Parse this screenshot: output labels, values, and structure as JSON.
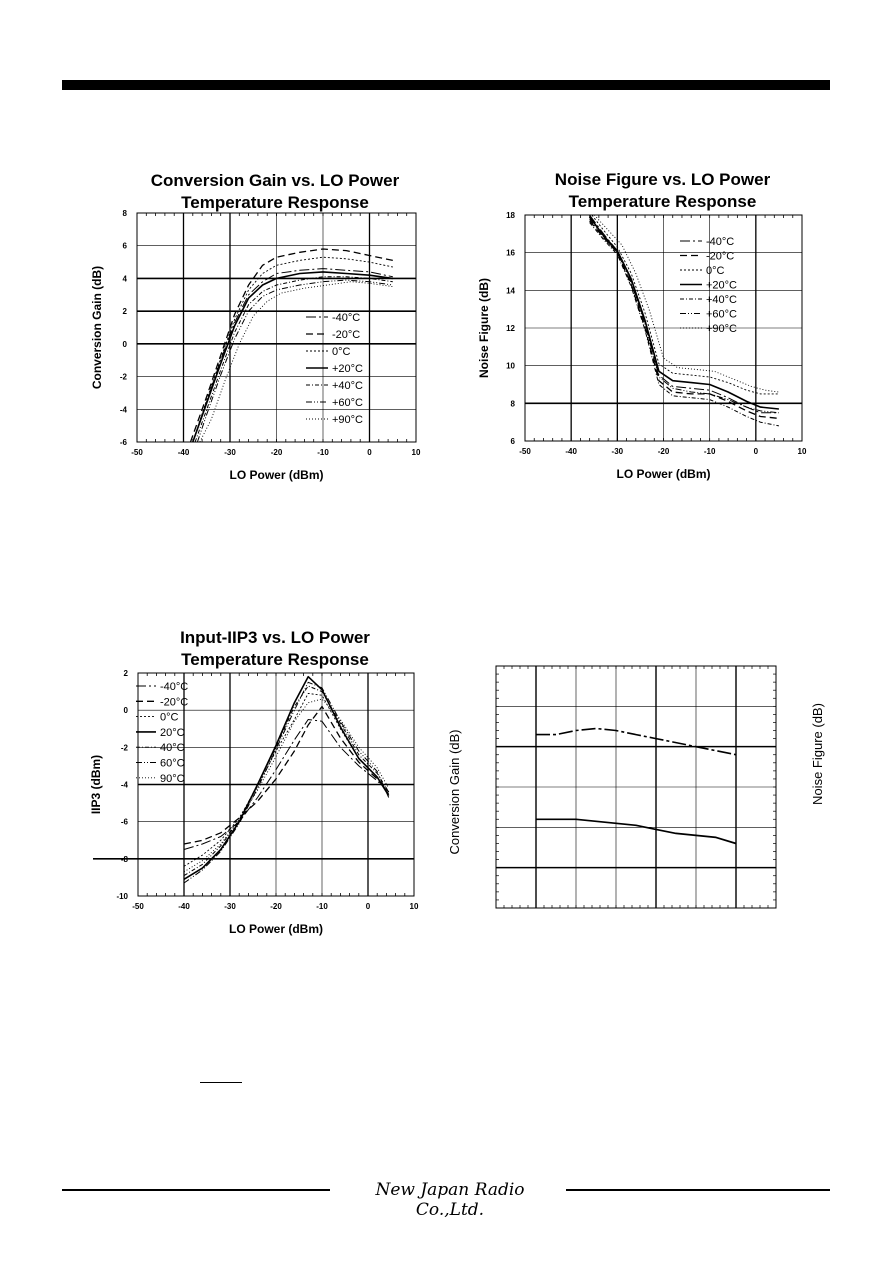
{
  "footer": {
    "brand": "New Japan Radio Co.,Ltd."
  },
  "chart_data": [
    {
      "id": "cg",
      "type": "line",
      "title_lines": [
        "Conversion Gain vs. LO Power",
        "Temperature Response"
      ],
      "xlabel": "LO Power (dBm)",
      "ylabel": "Conversion Gain (dB)",
      "xlim": [
        -50,
        10
      ],
      "ylim": [
        -6,
        8
      ],
      "xticks": [
        -50,
        -40,
        -30,
        -20,
        -10,
        0,
        10
      ],
      "yticks": [
        -6,
        -4,
        -2,
        0,
        2,
        4,
        6,
        8
      ],
      "ytick_labels": [
        "-6",
        "-4",
        "-2",
        "0",
        "2",
        "4",
        "6",
        "8"
      ],
      "grid": true,
      "thick_y": [
        4,
        2,
        0
      ],
      "legend": "bottom-right",
      "series": [
        {
          "name": "-40°C",
          "x": [
            -38,
            -35,
            -32,
            -29,
            -26,
            -23,
            -20,
            -15,
            -10,
            -5,
            0,
            5
          ],
          "y": [
            -6,
            -3.5,
            -1,
            1.3,
            3,
            3.8,
            4.3,
            4.5,
            4.6,
            4.5,
            4.4,
            4.1
          ]
        },
        {
          "name": "-20°C",
          "x": [
            -38.5,
            -35,
            -32,
            -29,
            -26,
            -23,
            -20,
            -15,
            -10,
            -5,
            0,
            5
          ],
          "y": [
            -6,
            -3.2,
            -0.7,
            1.8,
            3.6,
            4.8,
            5.3,
            5.6,
            5.8,
            5.7,
            5.4,
            5.1
          ]
        },
        {
          "name": "0°C",
          "x": [
            -38,
            -35,
            -32,
            -29,
            -26,
            -23,
            -20,
            -15,
            -10,
            -5,
            0,
            5
          ],
          "y": [
            -6,
            -3.4,
            -0.9,
            1.5,
            3.3,
            4.3,
            4.8,
            5.1,
            5.3,
            5.2,
            5.0,
            4.7
          ]
        },
        {
          "name": "+20°C",
          "x": [
            -38,
            -35,
            -32,
            -29,
            -26,
            -23,
            -20,
            -15,
            -10,
            -5,
            0,
            5
          ],
          "y": [
            -6,
            -3.6,
            -1.2,
            1.1,
            2.8,
            3.6,
            4.0,
            4.3,
            4.4,
            4.3,
            4.2,
            4.0
          ]
        },
        {
          "name": "+40°C",
          "x": [
            -37.5,
            -35,
            -32,
            -29,
            -26,
            -23,
            -20,
            -15,
            -10,
            -5,
            0,
            5
          ],
          "y": [
            -6,
            -4.0,
            -1.6,
            0.7,
            2.4,
            3.2,
            3.6,
            3.9,
            4.1,
            4.1,
            4.0,
            3.8
          ]
        },
        {
          "name": "+60°C",
          "x": [
            -37,
            -35,
            -32,
            -29,
            -26,
            -23,
            -20,
            -15,
            -10,
            -5,
            0,
            5
          ],
          "y": [
            -6,
            -4.3,
            -1.9,
            0.3,
            2.0,
            2.9,
            3.3,
            3.6,
            3.8,
            3.9,
            3.8,
            3.6
          ]
        },
        {
          "name": "+90°C",
          "x": [
            -36.5,
            -34,
            -31,
            -28,
            -25,
            -22,
            -19,
            -14,
            -9,
            -4,
            0,
            5
          ],
          "y": [
            -6,
            -4.6,
            -2.2,
            0,
            1.7,
            2.6,
            3.1,
            3.4,
            3.6,
            3.8,
            3.7,
            3.5
          ]
        }
      ]
    },
    {
      "id": "nf",
      "type": "line",
      "title_lines": [
        "Noise Figure vs. LO Power",
        "Temperature Response"
      ],
      "xlabel": "LO Power (dBm)",
      "ylabel": "Noise Figure (dB)",
      "xlim": [
        -50,
        10
      ],
      "ylim": [
        6,
        18
      ],
      "xticks": [
        -50,
        -40,
        -30,
        -20,
        -10,
        0,
        10
      ],
      "yticks": [
        6,
        8,
        10,
        12,
        14,
        16,
        18
      ],
      "ytick_labels": [
        "6",
        "8",
        "10",
        "12",
        "14",
        "16",
        "18"
      ],
      "grid": true,
      "thick_y": [
        8
      ],
      "legend": "top-right",
      "series": [
        {
          "name": "-40°C",
          "x": [
            -36,
            -33,
            -30,
            -27,
            -24,
            -21,
            -18,
            -14,
            -10,
            -6,
            -2,
            1,
            5
          ],
          "y": [
            18,
            17,
            16.1,
            14.5,
            12.3,
            9.5,
            8.9,
            8.8,
            8.7,
            8.3,
            7.8,
            7.5,
            7.5
          ]
        },
        {
          "name": "-20°C",
          "x": [
            -36,
            -33,
            -30,
            -27,
            -24,
            -21,
            -18,
            -14,
            -10,
            -6,
            -2,
            1,
            5
          ],
          "y": [
            17.7,
            16.8,
            16.0,
            14.3,
            12.0,
            9.2,
            8.6,
            8.5,
            8.5,
            8.1,
            7.6,
            7.3,
            7.2
          ]
        },
        {
          "name": "0°C",
          "x": [
            -35.5,
            -33,
            -30,
            -27,
            -24,
            -21,
            -18,
            -14,
            -10,
            -6,
            -2,
            1,
            5
          ],
          "y": [
            18,
            17.2,
            16.3,
            14.9,
            12.8,
            10.1,
            9.6,
            9.5,
            9.4,
            9.1,
            8.7,
            8.5,
            8.5
          ]
        },
        {
          "name": "+20°C",
          "x": [
            -36,
            -33,
            -30,
            -27,
            -24,
            -21,
            -18,
            -14,
            -10,
            -6,
            -2,
            1,
            5
          ],
          "y": [
            17.9,
            16.9,
            16.1,
            14.6,
            12.4,
            9.7,
            9.2,
            9.1,
            9.0,
            8.6,
            8.1,
            7.8,
            7.7
          ]
        },
        {
          "name": "+40°C",
          "x": [
            -36,
            -33,
            -30,
            -27,
            -24,
            -21,
            -18,
            -14,
            -10,
            -6,
            -2,
            1,
            5
          ],
          "y": [
            17.6,
            16.7,
            15.9,
            14.2,
            11.9,
            9.0,
            8.4,
            8.3,
            8.2,
            7.8,
            7.3,
            7.0,
            6.8
          ]
        },
        {
          "name": "+60°C",
          "x": [
            -36,
            -33,
            -30,
            -27,
            -24,
            -21,
            -18,
            -14,
            -10,
            -6,
            -2,
            1,
            5
          ],
          "y": [
            17.8,
            16.8,
            16.0,
            14.4,
            12.2,
            9.4,
            8.8,
            8.6,
            8.5,
            8.2,
            7.8,
            7.6,
            7.5
          ]
        },
        {
          "name": "+90°C",
          "x": [
            -35,
            -32,
            -29,
            -26,
            -23,
            -20,
            -17,
            -13,
            -9,
            -5,
            -1,
            2,
            5
          ],
          "y": [
            18,
            17.2,
            16.4,
            14.9,
            12.9,
            10.4,
            9.9,
            9.8,
            9.7,
            9.3,
            8.9,
            8.7,
            8.6
          ]
        }
      ]
    },
    {
      "id": "ip3",
      "type": "line",
      "title_lines": [
        "Input-IIP3 vs. LO Power",
        "Temperature Response"
      ],
      "xlabel": "LO Power (dBm)",
      "ylabel": "IIP3 (dBm)",
      "xlim": [
        -50,
        10
      ],
      "ylim": [
        -10,
        2
      ],
      "xticks": [
        -50,
        -40,
        -30,
        -20,
        -10,
        0,
        10
      ],
      "yticks": [
        -10,
        -8,
        -6,
        -4,
        -2,
        0,
        2
      ],
      "ytick_labels": [
        "-10",
        "-8",
        "-6",
        "-4",
        "-2",
        "0",
        "2"
      ],
      "grid": true,
      "thick_y": [
        -8,
        -4
      ],
      "legend": "top-left",
      "series": [
        {
          "name": "-40°C",
          "x": [
            -40,
            -36,
            -32,
            -28,
            -24,
            -20,
            -16,
            -13,
            -10,
            -6,
            -2,
            2,
            4.5
          ],
          "y": [
            -7.5,
            -7.2,
            -6.8,
            -6.0,
            -4.7,
            -3.2,
            -1.6,
            -0.5,
            -0.6,
            -2.0,
            -3.0,
            -3.8,
            -4.4
          ]
        },
        {
          "name": "-20°C",
          "x": [
            -40,
            -36,
            -32,
            -28,
            -24,
            -20,
            -16,
            -13,
            -10,
            -6,
            -2,
            2,
            4.5
          ],
          "y": [
            -7.2,
            -7.0,
            -6.6,
            -5.8,
            -4.9,
            -3.7,
            -2.2,
            -0.8,
            0.2,
            -1.5,
            -2.8,
            -3.7,
            -4.4
          ]
        },
        {
          "name": "0°C",
          "x": [
            -40,
            -36,
            -32,
            -28,
            -24,
            -20,
            -16,
            -13,
            -10,
            -6,
            -2,
            2,
            4.5
          ],
          "y": [
            -8.4,
            -7.8,
            -7.0,
            -5.8,
            -4.1,
            -2.2,
            -0.5,
            0.9,
            0.8,
            -1.0,
            -2.6,
            -3.6,
            -4.5
          ]
        },
        {
          "name": "20°C",
          "x": [
            -40,
            -36,
            -32,
            -28,
            -24,
            -20,
            -16,
            -13,
            -10,
            -6,
            -2,
            2,
            4.5
          ],
          "y": [
            -9.1,
            -8.5,
            -7.5,
            -6.0,
            -4.0,
            -1.9,
            0.4,
            1.8,
            1.1,
            -0.9,
            -2.6,
            -3.6,
            -4.6
          ]
        },
        {
          "name": "40°C",
          "x": [
            -40,
            -36,
            -32,
            -28,
            -24,
            -20,
            -16,
            -13,
            -10,
            -6,
            -2,
            2,
            4.5
          ],
          "y": [
            -8.9,
            -8.3,
            -7.3,
            -5.9,
            -4.0,
            -2.0,
            0.2,
            1.3,
            1.0,
            -0.7,
            -2.4,
            -3.4,
            -4.4
          ]
        },
        {
          "name": "60°C",
          "x": [
            -40,
            -36,
            -32,
            -28,
            -24,
            -20,
            -16,
            -13,
            -10,
            -6,
            -2,
            2,
            4.5
          ],
          "y": [
            -9.3,
            -8.6,
            -7.6,
            -6.1,
            -4.2,
            -2.1,
            0.0,
            1.5,
            1.2,
            -0.6,
            -2.2,
            -3.3,
            -4.7
          ]
        },
        {
          "name": "90°C",
          "x": [
            -40,
            -36,
            -32,
            -28,
            -24,
            -20,
            -16,
            -13,
            -10,
            -6,
            -2,
            2,
            4.5
          ],
          "y": [
            -8.7,
            -8.1,
            -7.2,
            -5.9,
            -4.3,
            -2.5,
            -0.6,
            0.4,
            0.6,
            -0.5,
            -2.0,
            -3.1,
            -4.2
          ]
        }
      ]
    },
    {
      "id": "cgnf",
      "type": "line",
      "xlabel": "",
      "ylabel": "Conversion Gain (dB)",
      "ylabel2": "Noise Figure (dB)",
      "x_major": 7,
      "y_major": 6,
      "xlim": [
        0,
        7
      ],
      "ylim": [
        0,
        6
      ],
      "grid": true,
      "series": [
        {
          "x": [
            1,
            1.5,
            2,
            2.5,
            3,
            3.5,
            4,
            4.5,
            5,
            5.5,
            6
          ],
          "y": [
            4.3,
            4.3,
            4.4,
            4.45,
            4.4,
            4.3,
            4.2,
            4.1,
            4.0,
            3.9,
            3.8
          ]
        },
        {
          "x": [
            1,
            1.5,
            2,
            2.5,
            3,
            3.5,
            4,
            4.5,
            5,
            5.5,
            6
          ],
          "y": [
            2.2,
            2.2,
            2.2,
            2.15,
            2.1,
            2.05,
            1.95,
            1.85,
            1.8,
            1.75,
            1.6
          ]
        }
      ]
    }
  ]
}
